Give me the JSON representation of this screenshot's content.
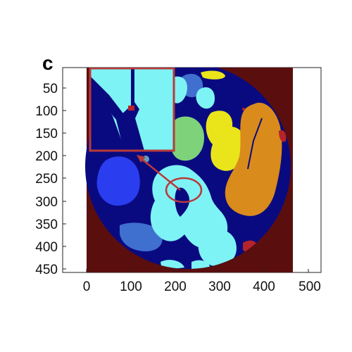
{
  "panel_label": "c",
  "axes": {
    "x_ticks": [
      "0",
      "100",
      "200",
      "300",
      "400",
      "500"
    ],
    "y_ticks": [
      "50",
      "100",
      "150",
      "200",
      "250",
      "300",
      "350",
      "400",
      "450"
    ]
  },
  "colors": {
    "background_outside_disk": "#5a0e0e",
    "disk_background": "#0a0a80",
    "cyan_region": "#7ef3f5",
    "yellow_region": "#e9e51a",
    "orange_region": "#d98b1b",
    "green_region": "#7ed37a",
    "blue_region": "#2a3ef0",
    "steel_blue_region": "#3f6fcf",
    "red_marker": "#b5232b",
    "annotation": "#b83a3a"
  },
  "annotations": {
    "ellipse_marker": "red ellipse highlighting boundary region",
    "arrow": "red arrow pointing to zoomed inset",
    "inset": "zoomed view of boundary between cyan regions"
  }
}
